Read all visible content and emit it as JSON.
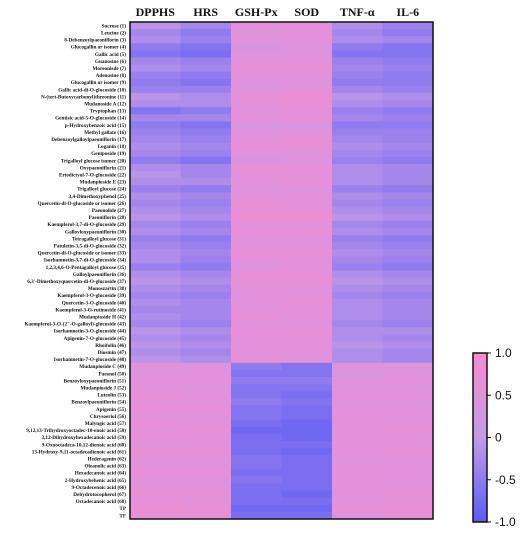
{
  "chart_data": {
    "type": "heatmap",
    "title": "",
    "xlabel": "",
    "ylabel": "",
    "columns": [
      "DPPHS",
      "HRS",
      "GSH-Px",
      "SOD",
      "TNF-α",
      "IL-6"
    ],
    "rows": [
      "Sucrose (1)",
      "Leucine (2)",
      "8-Debenzoylpaeoniflorin (3)",
      "Glucogallin or isomer (4)",
      "Gallic acid (5)",
      "Guanosine (6)",
      "Moreonisde (7)",
      "Adenosine (8)",
      "Glucogallin or isomer (9)",
      "Gallic acid-di-O-glucoside (10)",
      "N-(tert-Butoxycarbonyl)threonine (11)",
      "Mudanoside A (12)",
      "Tryptophan (13)",
      "Gentisic acid-5-O-glucoside (14)",
      "p-Hydroxybenzoic acid (15)",
      "Methyl gallate (16)",
      "Debenzoylgalloylpaeoniflorin (17)",
      "Loganin (18)",
      "Geniposide (19)",
      "Trigalloyl glucose isomer (20)",
      "Oxypaeoniflorin (21)",
      "Eriodictyol-7-O-glucoside (22)",
      "Mudanpioside E (23)",
      "Trigalloyl glucose (24)",
      "3,4-Dimethoxyphenol (25)",
      "Quercetin-di-O-glucoside or isomer (26)",
      "Paeonolide (27)",
      "Paeoniflorin (28)",
      "Kaempferol-3,7-di-O-glucoside (29)",
      "Galloyloxypaeoniflorin (30)",
      "Tetragalloyl glucose (31)",
      "Patuletin-3,5-di-O-glucoside (32)",
      "Quercetin-di-O-glucoside or isomer (33)",
      "Isorhamnetin-3,7-di-O-glucoside (34)",
      "1,2,3,4,6-O-Pentagalloyl glucose (35)",
      "Galloylpaeoniflorin (36)",
      "6,3'-Dimethoxyquercetin-di-O-glucoside (37)",
      "Monoszartin (38)",
      "Kaempferol-3-O-glucoside (39)",
      "Quercetin-3-O-glucoside (40)",
      "Kaempferol-3-O-rutinoside (41)",
      "Mudanpioside H (42)",
      "Kaempferol-3-O-(2\"-O-galloyl)-glucoside (43)",
      "Isorhamnetin-3-O-glucoside (44)",
      "Apigenin-7-O-glucoside (45)",
      "Rhoifolin (46)",
      "Diosmin (47)",
      "Isorhamnetin-7-O-glucoside (48)",
      "Mudanpioside C (49)",
      "Paeonol (50)",
      "Benzoyloxypaeoniflorin (51)",
      "Mudanpioside J (52)",
      "Luteolin (53)",
      "Benzoylpaeoniflorin (54)",
      "Apigenin (55)",
      "Chrysoeriol (56)",
      "Malyngic acid (57)",
      "9,12,13-Trihydroxyoctadec-10-enoic acid (58)",
      "3,12-Dihydroxyhexadecanoic acid (59)",
      "9-Oxooctadeca-10,12-dienoic acid (60)",
      "13-Hydroxy-9,11-octadecadienoic acid (61)",
      "Hederagenin (62)",
      "Oleanolic acid (63)",
      "Hexadecanoic acid (64)",
      "2-Hydroxybehenic acid (65)",
      "9-Octadecenoic acid (66)",
      "Dehydrotocopherol (67)",
      "Octadecanoic acid (68)",
      "TP",
      "TF"
    ],
    "values": [
      [
        -0.1,
        -0.3,
        0.6,
        0.7,
        -0.2,
        -0.4
      ],
      [
        -0.3,
        -0.5,
        0.5,
        0.6,
        -0.3,
        -0.5
      ],
      [
        -0.2,
        -0.4,
        0.5,
        0.6,
        -0.2,
        -0.3
      ],
      [
        -0.5,
        -0.6,
        0.4,
        0.5,
        -0.5,
        -0.6
      ],
      [
        -0.6,
        -0.7,
        0.5,
        0.5,
        -0.6,
        -0.6
      ],
      [
        -0.3,
        -0.4,
        0.6,
        0.6,
        -0.4,
        -0.5
      ],
      [
        -0.2,
        -0.3,
        0.7,
        0.7,
        -0.3,
        -0.4
      ],
      [
        -0.4,
        -0.5,
        0.6,
        0.6,
        -0.4,
        -0.5
      ],
      [
        -0.5,
        -0.6,
        0.5,
        0.5,
        -0.5,
        -0.5
      ],
      [
        -0.4,
        -0.4,
        0.5,
        0.6,
        -0.3,
        -0.4
      ],
      [
        -0.1,
        -0.2,
        0.7,
        0.8,
        -0.1,
        -0.2
      ],
      [
        -0.2,
        -0.2,
        0.6,
        0.7,
        -0.2,
        -0.3
      ],
      [
        -0.6,
        -0.5,
        0.6,
        0.6,
        -0.4,
        -0.5
      ],
      [
        -0.3,
        -0.3,
        0.6,
        0.7,
        -0.3,
        -0.4
      ],
      [
        -0.5,
        -0.6,
        0.4,
        0.4,
        -0.5,
        -0.5
      ],
      [
        -0.4,
        -0.5,
        0.5,
        0.5,
        -0.4,
        -0.4
      ],
      [
        -0.3,
        -0.4,
        0.6,
        0.7,
        -0.3,
        -0.4
      ],
      [
        -0.2,
        -0.3,
        0.7,
        0.7,
        -0.2,
        -0.3
      ],
      [
        -0.3,
        -0.4,
        0.5,
        0.5,
        -0.3,
        -0.4
      ],
      [
        -0.5,
        -0.6,
        0.4,
        0.5,
        -0.4,
        -0.5
      ],
      [
        -0.2,
        -0.3,
        0.7,
        0.7,
        -0.2,
        -0.3
      ],
      [
        -0.1,
        -0.3,
        0.6,
        0.6,
        -0.2,
        -0.3
      ],
      [
        -0.2,
        -0.2,
        0.6,
        0.7,
        -0.2,
        -0.3
      ],
      [
        -0.4,
        -0.5,
        0.5,
        0.5,
        -0.4,
        -0.5
      ],
      [
        -0.2,
        -0.3,
        0.6,
        0.6,
        -0.2,
        -0.3
      ],
      [
        -0.3,
        -0.4,
        0.7,
        0.6,
        -0.3,
        -0.4
      ],
      [
        -0.2,
        -0.3,
        0.7,
        0.7,
        -0.2,
        -0.3
      ],
      [
        -0.1,
        -0.2,
        0.8,
        0.8,
        -0.1,
        -0.2
      ],
      [
        -0.3,
        -0.4,
        0.6,
        0.6,
        -0.3,
        -0.4
      ],
      [
        -0.2,
        -0.3,
        0.7,
        0.7,
        -0.2,
        -0.3
      ],
      [
        -0.4,
        -0.5,
        0.6,
        0.6,
        -0.4,
        -0.5
      ],
      [
        -0.3,
        -0.4,
        0.6,
        0.6,
        -0.3,
        -0.4
      ],
      [
        -0.2,
        -0.3,
        0.7,
        0.7,
        -0.2,
        -0.3
      ],
      [
        -0.2,
        -0.4,
        0.6,
        0.6,
        -0.3,
        -0.4
      ],
      [
        -0.4,
        -0.5,
        0.5,
        0.6,
        -0.4,
        -0.5
      ],
      [
        -0.2,
        -0.3,
        0.7,
        0.7,
        -0.2,
        -0.3
      ],
      [
        -0.1,
        -0.2,
        0.7,
        0.7,
        -0.1,
        -0.2
      ],
      [
        -0.2,
        -0.3,
        0.6,
        0.6,
        -0.2,
        -0.3
      ],
      [
        -0.3,
        -0.4,
        0.6,
        0.6,
        -0.3,
        -0.4
      ],
      [
        -0.2,
        -0.3,
        0.6,
        0.7,
        -0.2,
        -0.3
      ],
      [
        -0.3,
        -0.3,
        0.6,
        0.6,
        -0.2,
        -0.3
      ],
      [
        -0.2,
        -0.3,
        0.7,
        0.6,
        -0.2,
        -0.3
      ],
      [
        -0.3,
        -0.4,
        0.6,
        0.6,
        -0.3,
        -0.4
      ],
      [
        -0.1,
        -0.2,
        0.7,
        0.7,
        -0.2,
        -0.2
      ],
      [
        -0.2,
        -0.3,
        0.6,
        0.6,
        -0.2,
        -0.3
      ],
      [
        -0.1,
        -0.2,
        0.6,
        0.6,
        -0.1,
        -0.2
      ],
      [
        -0.2,
        -0.3,
        0.6,
        0.6,
        -0.2,
        -0.3
      ],
      [
        -0.1,
        -0.2,
        0.7,
        0.6,
        -0.2,
        -0.3
      ],
      [
        0.6,
        0.5,
        -0.5,
        -0.6,
        0.5,
        0.5
      ],
      [
        0.5,
        0.6,
        -0.6,
        -0.6,
        0.4,
        0.5
      ],
      [
        0.6,
        0.6,
        -0.5,
        -0.5,
        0.5,
        0.6
      ],
      [
        0.6,
        0.5,
        -0.6,
        -0.6,
        0.5,
        0.5
      ],
      [
        0.7,
        0.6,
        -0.6,
        -0.7,
        0.6,
        0.6
      ],
      [
        0.6,
        0.6,
        -0.5,
        -0.6,
        0.5,
        0.5
      ],
      [
        0.7,
        0.7,
        -0.6,
        -0.7,
        0.6,
        0.6
      ],
      [
        0.6,
        0.6,
        -0.6,
        -0.7,
        0.6,
        0.6
      ],
      [
        0.7,
        0.6,
        -0.7,
        -0.8,
        0.6,
        0.6
      ],
      [
        0.6,
        0.7,
        -0.8,
        -0.8,
        0.6,
        0.7
      ],
      [
        0.7,
        0.6,
        -0.7,
        -0.8,
        0.6,
        0.6
      ],
      [
        0.6,
        0.6,
        -0.7,
        -0.7,
        0.6,
        0.6
      ],
      [
        0.7,
        0.7,
        -0.7,
        -0.8,
        0.6,
        0.7
      ],
      [
        0.6,
        0.6,
        -0.6,
        -0.7,
        0.5,
        0.6
      ],
      [
        0.6,
        0.6,
        -0.6,
        -0.7,
        0.6,
        0.6
      ],
      [
        0.7,
        0.7,
        -0.7,
        -0.7,
        0.6,
        0.6
      ],
      [
        0.6,
        0.6,
        -0.6,
        -0.7,
        0.6,
        0.6
      ],
      [
        0.6,
        0.6,
        -0.7,
        -0.7,
        0.6,
        0.6
      ],
      [
        0.7,
        0.7,
        -0.7,
        -0.8,
        0.6,
        0.7
      ],
      [
        0.7,
        0.6,
        -0.7,
        -0.7,
        0.6,
        0.6
      ],
      [
        0.8,
        0.7,
        -0.8,
        -0.8,
        0.7,
        0.7
      ],
      [
        0.7,
        0.7,
        -0.7,
        -0.7,
        0.6,
        0.7
      ]
    ],
    "zlim": [
      -1.0,
      1.0
    ],
    "colorbar_ticks": [
      "1.0",
      "0.5",
      "0",
      "-0.5",
      "-1.0"
    ],
    "colorbar_tick_values": [
      1.0,
      0.5,
      0,
      -0.5,
      -1.0
    ],
    "colorscale": {
      "low": "#5b5bf5",
      "mid": "#c49ae8",
      "high": "#f78bd0"
    },
    "legend_position": "right"
  },
  "colors": {
    "border": "#111111",
    "text": "#111111",
    "background": "#ffffff"
  }
}
